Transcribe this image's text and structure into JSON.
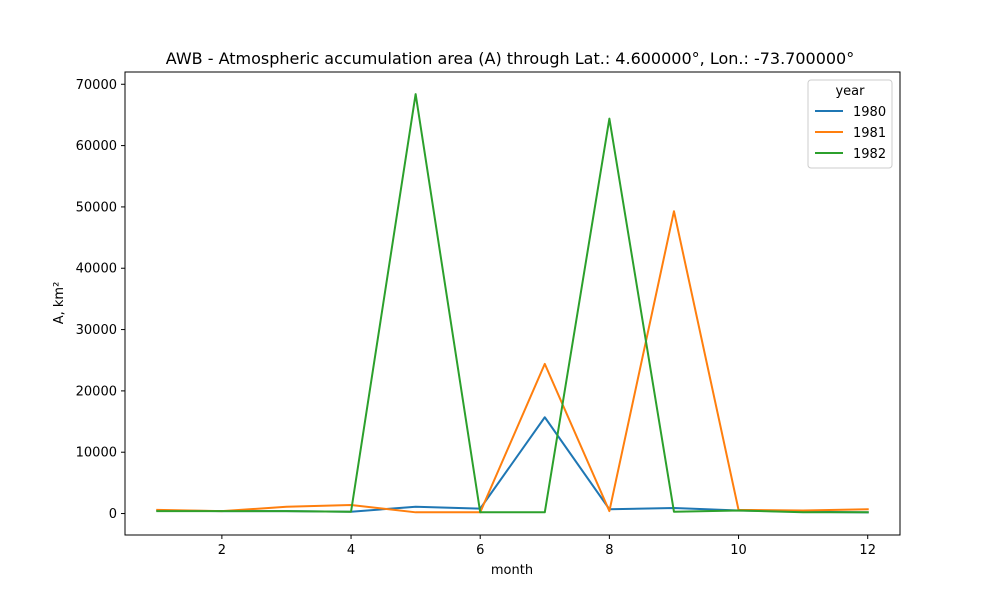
{
  "chart_data": {
    "type": "line",
    "title": "AWB - Atmospheric accumulation area (A) through Lat.: 4.600000°, Lon.: -73.700000°",
    "xlabel": "month",
    "ylabel": "A, km²",
    "x": [
      1,
      2,
      3,
      4,
      5,
      6,
      7,
      8,
      9,
      10,
      11,
      12
    ],
    "xlim": [
      0.5,
      12.5
    ],
    "ylim": [
      -3500,
      72000
    ],
    "xticks": [
      2,
      4,
      6,
      8,
      10,
      12
    ],
    "yticks": [
      0,
      10000,
      20000,
      30000,
      40000,
      50000,
      60000,
      70000
    ],
    "grid": false,
    "legend": {
      "title": "year",
      "position": "upper-right"
    },
    "series": [
      {
        "name": "1980",
        "color": "#1f77b4",
        "values": [
          500,
          400,
          400,
          300,
          1100,
          800,
          15700,
          700,
          900,
          500,
          300,
          200
        ]
      },
      {
        "name": "1981",
        "color": "#ff7f0e",
        "values": [
          600,
          400,
          1100,
          1400,
          200,
          200,
          24400,
          400,
          49300,
          600,
          500,
          700
        ]
      },
      {
        "name": "1982",
        "color": "#2ca02c",
        "values": [
          400,
          400,
          400,
          300,
          68400,
          200,
          200,
          64400,
          300,
          500,
          200,
          200
        ]
      }
    ]
  }
}
